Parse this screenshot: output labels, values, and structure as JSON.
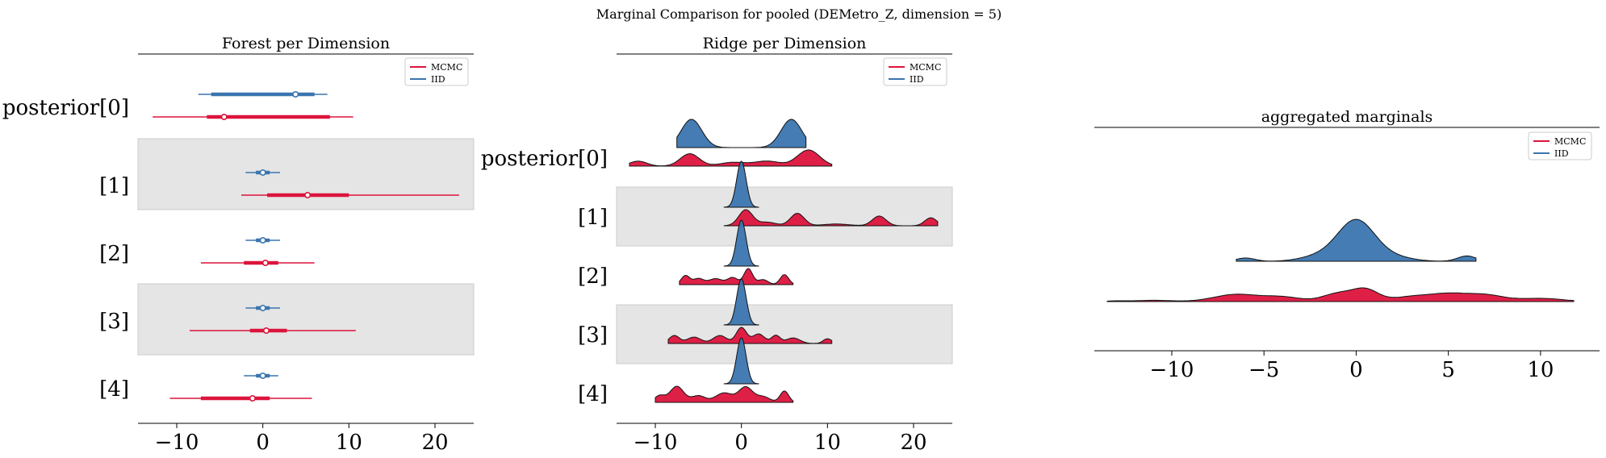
{
  "title": "Marginal Comparison for pooled (DEMetro_Z, dimension = 5)",
  "legend": {
    "mcmc_label": "MCMC",
    "iid_label": "IID"
  },
  "colors": {
    "mcmc": "#dc143c",
    "iid": "#3b75af",
    "band": "#e5e5e5",
    "axis": "#000000"
  },
  "chart_data": [
    {
      "type": "forest",
      "title": "Forest per Dimension",
      "xlim": [
        -14.5,
        24.5
      ],
      "xticks": [
        "−10",
        "0",
        "10",
        "20"
      ],
      "xtick_values": [
        -10,
        0,
        10,
        20
      ],
      "row_labels": [
        "posterior[0]",
        "[1]",
        "[2]",
        "[3]",
        "[4]"
      ],
      "legend_position": "top-right",
      "series": [
        {
          "name": "IID",
          "rows": [
            {
              "line": [
                -7.5,
                7.5
              ],
              "box": [
                -6,
                6
              ],
              "point": 3.8
            },
            {
              "line": [
                -2,
                2
              ],
              "box": [
                -0.8,
                0.8
              ],
              "point": 0
            },
            {
              "line": [
                -2,
                2
              ],
              "box": [
                -0.8,
                0.8
              ],
              "point": 0
            },
            {
              "line": [
                -2,
                2
              ],
              "box": [
                -0.8,
                0.8
              ],
              "point": 0
            },
            {
              "line": [
                -2.2,
                1.8
              ],
              "box": [
                -0.8,
                0.8
              ],
              "point": 0
            }
          ]
        },
        {
          "name": "MCMC",
          "rows": [
            {
              "line": [
                -12.8,
                10.5
              ],
              "box": [
                -6.5,
                7.8
              ],
              "point": -4.5
            },
            {
              "line": [
                -2.5,
                22.8
              ],
              "box": [
                0.5,
                10
              ],
              "point": 5.2
            },
            {
              "line": [
                -7.2,
                6
              ],
              "box": [
                -2.2,
                1.8
              ],
              "point": 0.3
            },
            {
              "line": [
                -8.5,
                10.8
              ],
              "box": [
                -1.5,
                2.8
              ],
              "point": 0.4
            },
            {
              "line": [
                -10.8,
                5.7
              ],
              "box": [
                -7.2,
                0.8
              ],
              "point": -1.2
            }
          ]
        }
      ]
    },
    {
      "type": "ridge",
      "title": "Ridge per Dimension",
      "xlim": [
        -14.5,
        24.5
      ],
      "xticks": [
        "−10",
        "0",
        "10",
        "20"
      ],
      "xtick_values": [
        -10,
        0,
        10,
        20
      ],
      "row_labels": [
        "posterior[0]",
        "[1]",
        "[2]",
        "[3]",
        "[4]"
      ],
      "legend_position": "top-right",
      "series": [
        {
          "name": "IID",
          "rows": [
            {
              "range": [
                -7.5,
                7.5
              ],
              "peaks": [
                [
                  -5.8,
                  1.0,
                  1.2
                ],
                [
                  5.8,
                  1.0,
                  1.2
                ]
              ]
            },
            {
              "range": [
                -2,
                2
              ],
              "peaks": [
                [
                  0,
                  1.0,
                  0.55
                ]
              ]
            },
            {
              "range": [
                -2,
                2
              ],
              "peaks": [
                [
                  0,
                  1.0,
                  0.55
                ]
              ]
            },
            {
              "range": [
                -2,
                2
              ],
              "peaks": [
                [
                  0,
                  1.0,
                  0.55
                ]
              ]
            },
            {
              "range": [
                -2,
                2
              ],
              "peaks": [
                [
                  0,
                  1.0,
                  0.55
                ]
              ]
            }
          ]
        },
        {
          "name": "MCMC",
          "rows": [
            {
              "range": [
                -13,
                10.5
              ],
              "peaks": [
                [
                  -12,
                  0.2,
                  1.0
                ],
                [
                  -6,
                  0.5,
                  1.1
                ],
                [
                  -1,
                  0.15,
                  1.5
                ],
                [
                  3,
                  0.2,
                  1.5
                ],
                [
                  7.8,
                  0.65,
                  1.3
                ]
              ]
            },
            {
              "range": [
                -2,
                22.8
              ],
              "peaks": [
                [
                  0.5,
                  0.9,
                  0.8
                ],
                [
                  3,
                  0.2,
                  1.0
                ],
                [
                  6.5,
                  0.7,
                  0.8
                ],
                [
                  11,
                  0.1,
                  1.5
                ],
                [
                  16,
                  0.55,
                  0.8
                ],
                [
                  22,
                  0.45,
                  0.7
                ]
              ]
            },
            {
              "range": [
                -7.2,
                6
              ],
              "peaks": [
                [
                  -6.5,
                  0.45,
                  0.5
                ],
                [
                  -5,
                  0.3,
                  0.6
                ],
                [
                  -3,
                  0.3,
                  0.8
                ],
                [
                  -1,
                  0.35,
                  0.6
                ],
                [
                  0.8,
                  0.8,
                  0.5
                ],
                [
                  2.5,
                  0.25,
                  0.6
                ],
                [
                  5,
                  0.5,
                  0.5
                ]
              ]
            },
            {
              "range": [
                -8.5,
                10.5
              ],
              "peaks": [
                [
                  -7.8,
                  0.5,
                  0.6
                ],
                [
                  -5.5,
                  0.4,
                  0.8
                ],
                [
                  -2.5,
                  0.5,
                  0.8
                ],
                [
                  0,
                  1.0,
                  0.6
                ],
                [
                  2,
                  0.6,
                  0.7
                ],
                [
                  4,
                  0.5,
                  0.5
                ],
                [
                  6,
                  0.35,
                  0.8
                ],
                [
                  10,
                  0.3,
                  0.5
                ]
              ]
            },
            {
              "range": [
                -10,
                6
              ],
              "peaks": [
                [
                  -9.5,
                  0.35,
                  0.6
                ],
                [
                  -7.5,
                  0.85,
                  0.8
                ],
                [
                  -5,
                  0.35,
                  0.8
                ],
                [
                  -2,
                  0.5,
                  1.0
                ],
                [
                  0.5,
                  0.8,
                  0.8
                ],
                [
                  2.5,
                  0.3,
                  0.8
                ],
                [
                  5,
                  0.6,
                  0.5
                ]
              ]
            }
          ]
        }
      ]
    },
    {
      "type": "area",
      "title": "aggregated marginals",
      "xlim": [
        -14.2,
        13.2
      ],
      "xticks": [
        "−10",
        "−5",
        "0",
        "5",
        "10"
      ],
      "xtick_values": [
        -10,
        -5,
        0,
        5,
        10
      ],
      "legend_position": "top-right",
      "series": [
        {
          "name": "IID",
          "range": [
            -6.5,
            6.5
          ],
          "peaks": [
            [
              -6,
              0.08,
              0.5
            ],
            [
              -2,
              0.12,
              1.0
            ],
            [
              0,
              1.0,
              1.0
            ],
            [
              2,
              0.1,
              1.0
            ],
            [
              6,
              0.13,
              0.5
            ]
          ]
        },
        {
          "name": "MCMC",
          "range": [
            -13.5,
            11.8
          ],
          "peaks": [
            [
              -13,
              0.04,
              0.5
            ],
            [
              -11,
              0.08,
              1.0
            ],
            [
              -6.5,
              0.45,
              1.2
            ],
            [
              -4,
              0.28,
              1.0
            ],
            [
              -1,
              0.5,
              0.8
            ],
            [
              0.5,
              0.75,
              0.7
            ],
            [
              3,
              0.3,
              1.0
            ],
            [
              5,
              0.45,
              1.0
            ],
            [
              7,
              0.4,
              1.0
            ],
            [
              10,
              0.2,
              1.2
            ]
          ]
        }
      ]
    }
  ]
}
